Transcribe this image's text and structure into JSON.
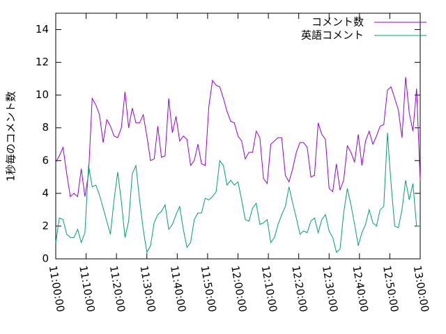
{
  "chart_data": {
    "type": "line",
    "ylabel": "1秒毎のコメント数",
    "x": [
      "11:00:00",
      "11:01:12",
      "11:02:24",
      "11:03:36",
      "11:04:48",
      "11:06:00",
      "11:07:12",
      "11:08:24",
      "11:09:36",
      "11:10:48",
      "11:12:00",
      "11:13:12",
      "11:14:24",
      "11:15:36",
      "11:16:48",
      "11:18:00",
      "11:19:12",
      "11:20:24",
      "11:21:36",
      "11:22:48",
      "11:24:00",
      "11:25:12",
      "11:26:24",
      "11:27:36",
      "11:28:48",
      "11:30:00",
      "11:31:12",
      "11:32:24",
      "11:33:36",
      "11:34:48",
      "11:36:00",
      "11:37:12",
      "11:38:24",
      "11:39:36",
      "11:40:48",
      "11:42:00",
      "11:43:12",
      "11:44:24",
      "11:45:36",
      "11:46:48",
      "11:48:00",
      "11:49:12",
      "11:50:24",
      "11:51:36",
      "11:52:48",
      "11:54:00",
      "11:55:12",
      "11:56:24",
      "11:57:36",
      "11:58:48",
      "12:00:00",
      "12:01:12",
      "12:02:24",
      "12:03:36",
      "12:04:48",
      "12:06:00",
      "12:07:12",
      "12:08:24",
      "12:09:36",
      "12:10:48",
      "12:12:00",
      "12:13:12",
      "12:14:24",
      "12:15:36",
      "12:16:48",
      "12:18:00",
      "12:19:12",
      "12:20:24",
      "12:21:36",
      "12:22:48",
      "12:24:00",
      "12:25:12",
      "12:26:24",
      "12:27:36",
      "12:28:48",
      "12:30:00",
      "12:31:12",
      "12:32:24",
      "12:33:36",
      "12:34:48",
      "12:36:00",
      "12:37:12",
      "12:38:24",
      "12:39:36",
      "12:40:48",
      "12:42:00",
      "12:43:12",
      "12:44:24",
      "12:45:36",
      "12:46:48",
      "12:48:00",
      "12:49:12",
      "12:50:24",
      "12:51:36",
      "12:52:48",
      "12:54:00",
      "12:55:12",
      "12:56:24",
      "12:57:36",
      "12:58:48",
      "13:00:00"
    ],
    "series": [
      {
        "name": "コメント数",
        "color": "#9400d3",
        "values": [
          5.9,
          6.3,
          6.8,
          5.2,
          3.8,
          4.0,
          3.8,
          5.5,
          3.8,
          5.2,
          9.8,
          9.4,
          8.8,
          7.1,
          8.5,
          8.1,
          7.5,
          7.4,
          8.0,
          10.2,
          8.0,
          9.2,
          8.3,
          8.3,
          8.8,
          7.5,
          6.0,
          6.1,
          8.1,
          6.2,
          6.3,
          9.8,
          7.7,
          8.7,
          7.2,
          7.5,
          7.3,
          5.7,
          6.0,
          7.0,
          5.8,
          5.7,
          9.3,
          10.9,
          10.6,
          10.5,
          9.8,
          9.0,
          8.4,
          8.3,
          7.5,
          7.2,
          6.1,
          6.5,
          6.5,
          7.8,
          7.4,
          4.9,
          4.6,
          7.0,
          7.2,
          7.4,
          7.4,
          5.1,
          4.7,
          5.5,
          6.5,
          7.1,
          7.1,
          6.8,
          5.0,
          5.1,
          8.3,
          7.6,
          7.3,
          4.3,
          4.1,
          5.8,
          4.2,
          4.8,
          6.9,
          6.5,
          5.9,
          7.6,
          5.7,
          7.2,
          7.8,
          7.0,
          7.5,
          8.1,
          8.2,
          10.3,
          10.5,
          9.8,
          9.1,
          7.4,
          11.1,
          8.9,
          7.8,
          10.4,
          4.8
        ]
      },
      {
        "name": "英語コメント",
        "color": "#009e73",
        "values": [
          1.0,
          2.5,
          2.4,
          1.5,
          1.3,
          1.3,
          1.8,
          1.0,
          1.6,
          5.7,
          4.4,
          4.5,
          3.9,
          3.1,
          2.3,
          1.5,
          3.6,
          5.3,
          3.5,
          1.3,
          2.3,
          5.2,
          5.7,
          3.6,
          1.8,
          0.4,
          0.8,
          2.2,
          2.7,
          2.9,
          3.3,
          1.8,
          2.1,
          2.7,
          3.2,
          1.8,
          0.7,
          1.0,
          2.4,
          2.8,
          2.8,
          3.7,
          3.6,
          3.8,
          4.1,
          6.0,
          5.7,
          4.5,
          4.8,
          4.5,
          4.7,
          3.6,
          2.4,
          2.3,
          3.1,
          3.4,
          2.1,
          2.2,
          2.4,
          1.0,
          1.3,
          2.1,
          2.7,
          3.2,
          4.4,
          3.4,
          2.5,
          1.5,
          1.7,
          1.6,
          2.3,
          2.5,
          1.6,
          2.4,
          2.7,
          1.7,
          1.3,
          0.4,
          0.6,
          2.8,
          4.3,
          3.3,
          2.1,
          0.8,
          1.6,
          2.1,
          3.0,
          2.2,
          2.0,
          3.0,
          3.2,
          7.7,
          4.6,
          2.0,
          1.9,
          3.0,
          4.8,
          3.6,
          4.6,
          2.0,
          2.0
        ]
      }
    ],
    "xlim": [
      "11:00:00",
      "13:00:00"
    ],
    "xticks": [
      "11:00:00",
      "11:10:00",
      "11:20:00",
      "11:30:00",
      "11:40:00",
      "11:50:00",
      "12:00:00",
      "12:10:00",
      "12:20:00",
      "12:30:00",
      "12:40:00",
      "12:50:00",
      "13:00:00"
    ],
    "ylim": [
      0,
      15
    ],
    "yticks": [
      0,
      2,
      4,
      6,
      8,
      10,
      12,
      14
    ],
    "legend": "top-right"
  }
}
